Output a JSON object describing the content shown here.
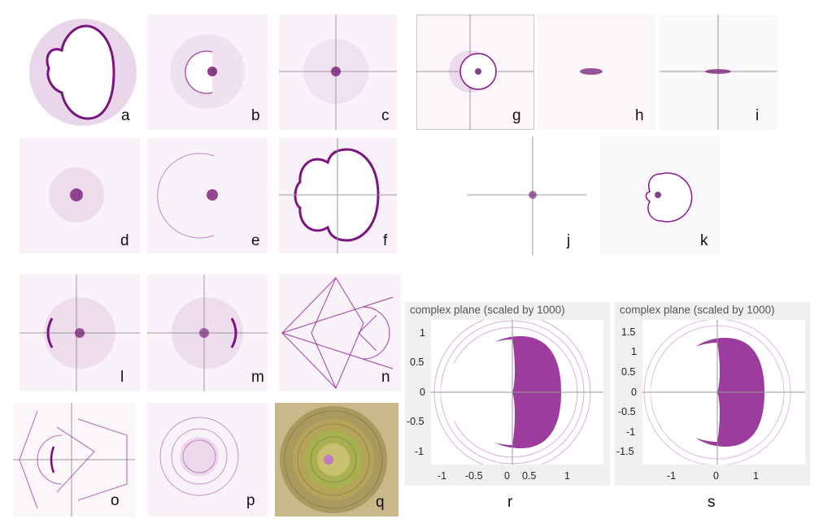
{
  "panels": {
    "a": "a",
    "b": "b",
    "c": "c",
    "d": "d",
    "e": "e",
    "f": "f",
    "g": "g",
    "h": "h",
    "i": "i",
    "j": "j",
    "k": "k",
    "l": "l",
    "m": "m",
    "n": "n",
    "o": "o",
    "p": "p",
    "q": "q"
  },
  "plot_r": {
    "label": "r",
    "title": "complex plane (scaled by 1000)",
    "yticks": [
      "1",
      "0.5",
      "0",
      "-0.5",
      "-1"
    ],
    "xticks": [
      "-1",
      "-0.5",
      "0",
      "0.5",
      "1"
    ]
  },
  "plot_s": {
    "label": "s",
    "title": "complex plane (scaled by 1000)",
    "yticks": [
      "1.5",
      "1",
      "0.5",
      "0",
      "-0.5",
      "-1",
      "-1.5"
    ],
    "xticks": [
      "-1",
      "0",
      "1"
    ]
  },
  "colors": {
    "point": "#8b1a8b",
    "axis": "#9a9a9a",
    "plotbg": "#f0f0f0"
  }
}
